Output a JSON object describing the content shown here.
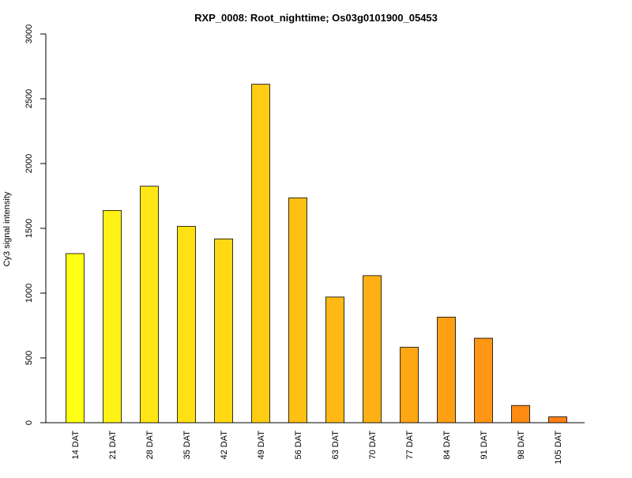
{
  "chart_data": {
    "type": "bar",
    "title": "RXP_0008: Root_nighttime; Os03g0101900_05453",
    "xlabel": "",
    "ylabel": "Cy3 signal intensity",
    "ylim": [
      0,
      3000
    ],
    "yticks": [
      0,
      500,
      1000,
      1500,
      2000,
      2500,
      3000
    ],
    "categories": [
      "14 DAT",
      "21 DAT",
      "28 DAT",
      "35 DAT",
      "42 DAT",
      "49 DAT",
      "56 DAT",
      "63 DAT",
      "70 DAT",
      "77 DAT",
      "84 DAT",
      "91 DAT",
      "98 DAT",
      "105 DAT"
    ],
    "values": [
      1305,
      1638,
      1825,
      1515,
      1418,
      2612,
      1735,
      970,
      1135,
      582,
      815,
      652,
      133,
      45
    ],
    "colors": [
      "#FFFF14",
      "#FFF214",
      "#FFE614",
      "#FFE014",
      "#FFD914",
      "#FFCC14",
      "#FFC014",
      "#FFB814",
      "#FFB014",
      "#FFA614",
      "#FFA014",
      "#FF9614",
      "#FF8A14",
      "#FF8014"
    ],
    "grid": false,
    "legend": "none"
  }
}
